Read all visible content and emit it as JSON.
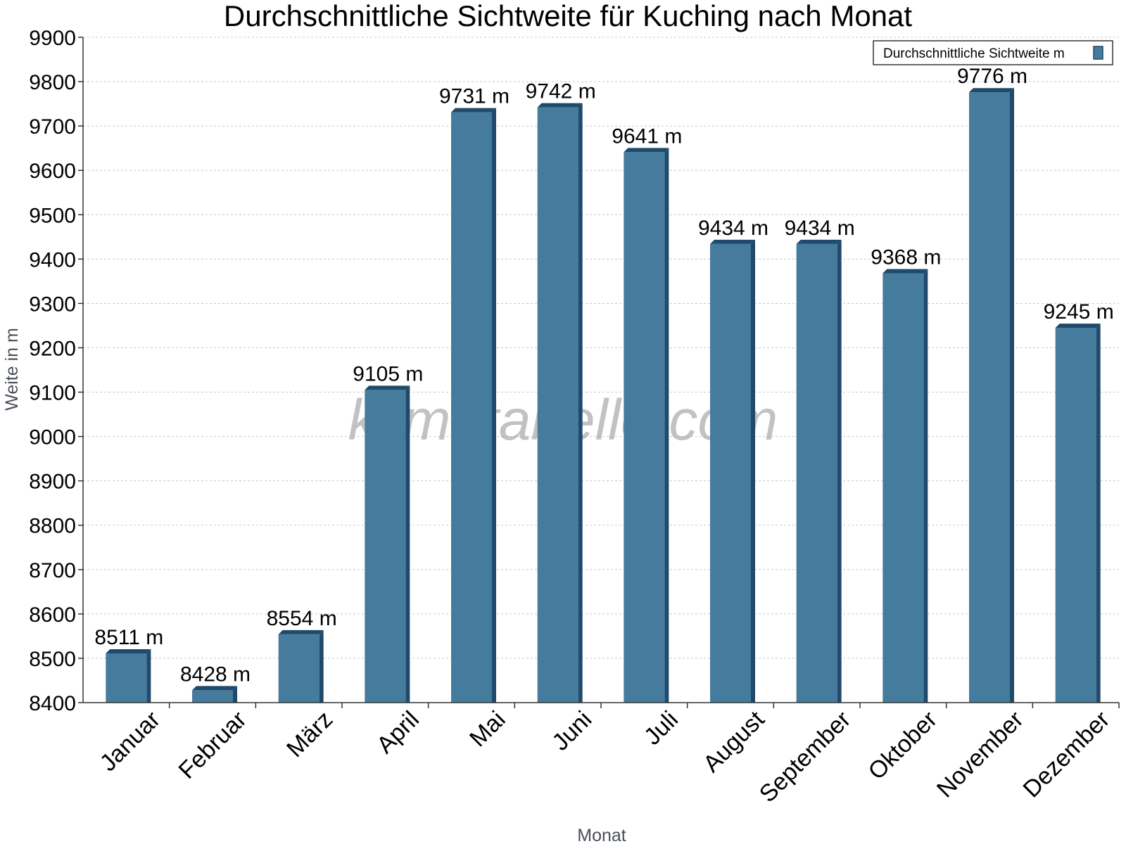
{
  "watermark": "klimatabelle.com",
  "chart_data": {
    "type": "bar",
    "title": "Durchschnittliche Sichtweite für Kuching nach Monat",
    "xlabel": "Monat",
    "ylabel": "Weite in m",
    "ylim": [
      8400,
      9900
    ],
    "ytick_step": 100,
    "yticks": [
      "8400",
      "8500",
      "8600",
      "8700",
      "8800",
      "8900",
      "9000",
      "9100",
      "9200",
      "9300",
      "9400",
      "9500",
      "9600",
      "9700",
      "9800",
      "9900"
    ],
    "grid": true,
    "legend_position": "top-right",
    "categories": [
      "Januar",
      "Februar",
      "März",
      "April",
      "Mai",
      "Juni",
      "Juli",
      "August",
      "September",
      "Oktober",
      "November",
      "Dezember"
    ],
    "series": [
      {
        "name": "Durchschnittliche Sichtweite m",
        "color": "#457b9d",
        "values": [
          8511,
          8428,
          8554,
          9105,
          9731,
          9742,
          9641,
          9434,
          9434,
          9368,
          9776,
          9245
        ],
        "labels": [
          "8511 m",
          "8428 m",
          "8554 m",
          "9105 m",
          "9731 m",
          "9742 m",
          "9641 m",
          "9434 m",
          "9434 m",
          "9368 m",
          "9776 m",
          "9245 m"
        ]
      }
    ]
  }
}
